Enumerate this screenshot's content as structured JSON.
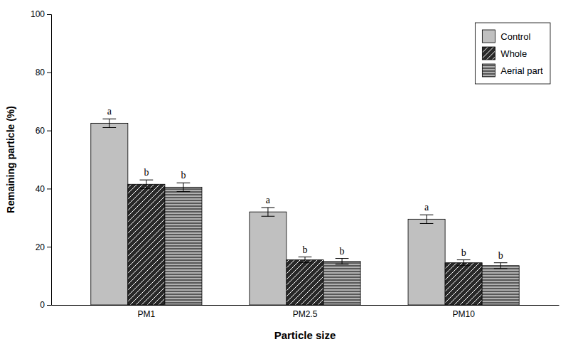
{
  "chart_data": {
    "type": "bar",
    "xlabel": "Particle size",
    "ylabel": "Remaining particle (%)",
    "categories": [
      "PM1",
      "PM2.5",
      "PM10"
    ],
    "series": [
      {
        "name": "Control",
        "color": "#c0c0c0",
        "values": [
          62.5,
          32.0,
          29.5
        ],
        "errors": [
          1.5,
          1.5,
          1.5
        ],
        "letters": [
          "a",
          "a",
          "a"
        ]
      },
      {
        "name": "Whole",
        "color": "#282828",
        "values": [
          41.5,
          15.5,
          14.5
        ],
        "errors": [
          1.5,
          1.0,
          1.0
        ],
        "letters": [
          "b",
          "b",
          "b"
        ]
      },
      {
        "name": "Aerial part",
        "color": "#b0b0b0",
        "values": [
          40.5,
          15.0,
          13.5
        ],
        "errors": [
          1.5,
          1.0,
          1.0
        ],
        "letters": [
          "b",
          "b",
          "b"
        ]
      }
    ],
    "ylim": [
      0,
      100
    ],
    "yticks": [
      0,
      20,
      40,
      60,
      80,
      100
    ],
    "grid": false,
    "legend": "upper right"
  }
}
